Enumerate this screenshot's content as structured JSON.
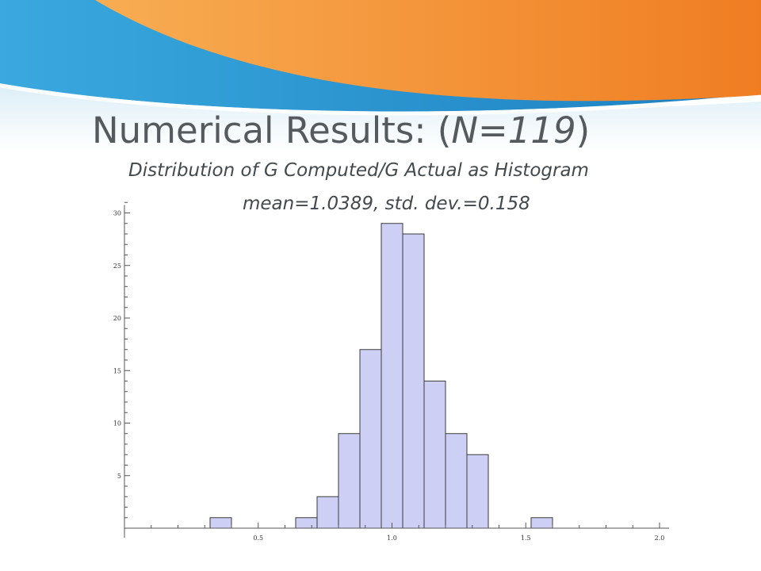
{
  "slide": {
    "title_main": "Numerical Results: (",
    "title_italic": "N=119",
    "title_close": ")",
    "subtitle": "Distribution of G Computed/G Actual as Histogram",
    "stats": "mean=1.0389, std. dev.=0.158"
  },
  "colors": {
    "banner_blue": "#2f9fd6",
    "banner_orange": "#f28a2e",
    "bar_fill": "#cdd0f4",
    "bar_stroke": "#3a3a3a",
    "title": "#555a5e"
  },
  "chart_data": {
    "type": "bar",
    "title": "",
    "xlabel": "",
    "ylabel": "",
    "bin_width": 0.08,
    "bins": [
      {
        "start": 0.32,
        "count": 1
      },
      {
        "start": 0.64,
        "count": 1
      },
      {
        "start": 0.72,
        "count": 3
      },
      {
        "start": 0.8,
        "count": 9
      },
      {
        "start": 0.88,
        "count": 17
      },
      {
        "start": 0.96,
        "count": 29
      },
      {
        "start": 1.04,
        "count": 28
      },
      {
        "start": 1.12,
        "count": 14
      },
      {
        "start": 1.2,
        "count": 9
      },
      {
        "start": 1.28,
        "count": 7
      },
      {
        "start": 1.52,
        "count": 1
      }
    ],
    "xlim": [
      0,
      2.0
    ],
    "ylim": [
      0,
      30
    ],
    "xticks": [
      "0.5",
      "1.0",
      "1.5",
      "2.0"
    ],
    "yticks": [
      "5",
      "10",
      "15",
      "20",
      "25",
      "30"
    ],
    "grid": false
  }
}
